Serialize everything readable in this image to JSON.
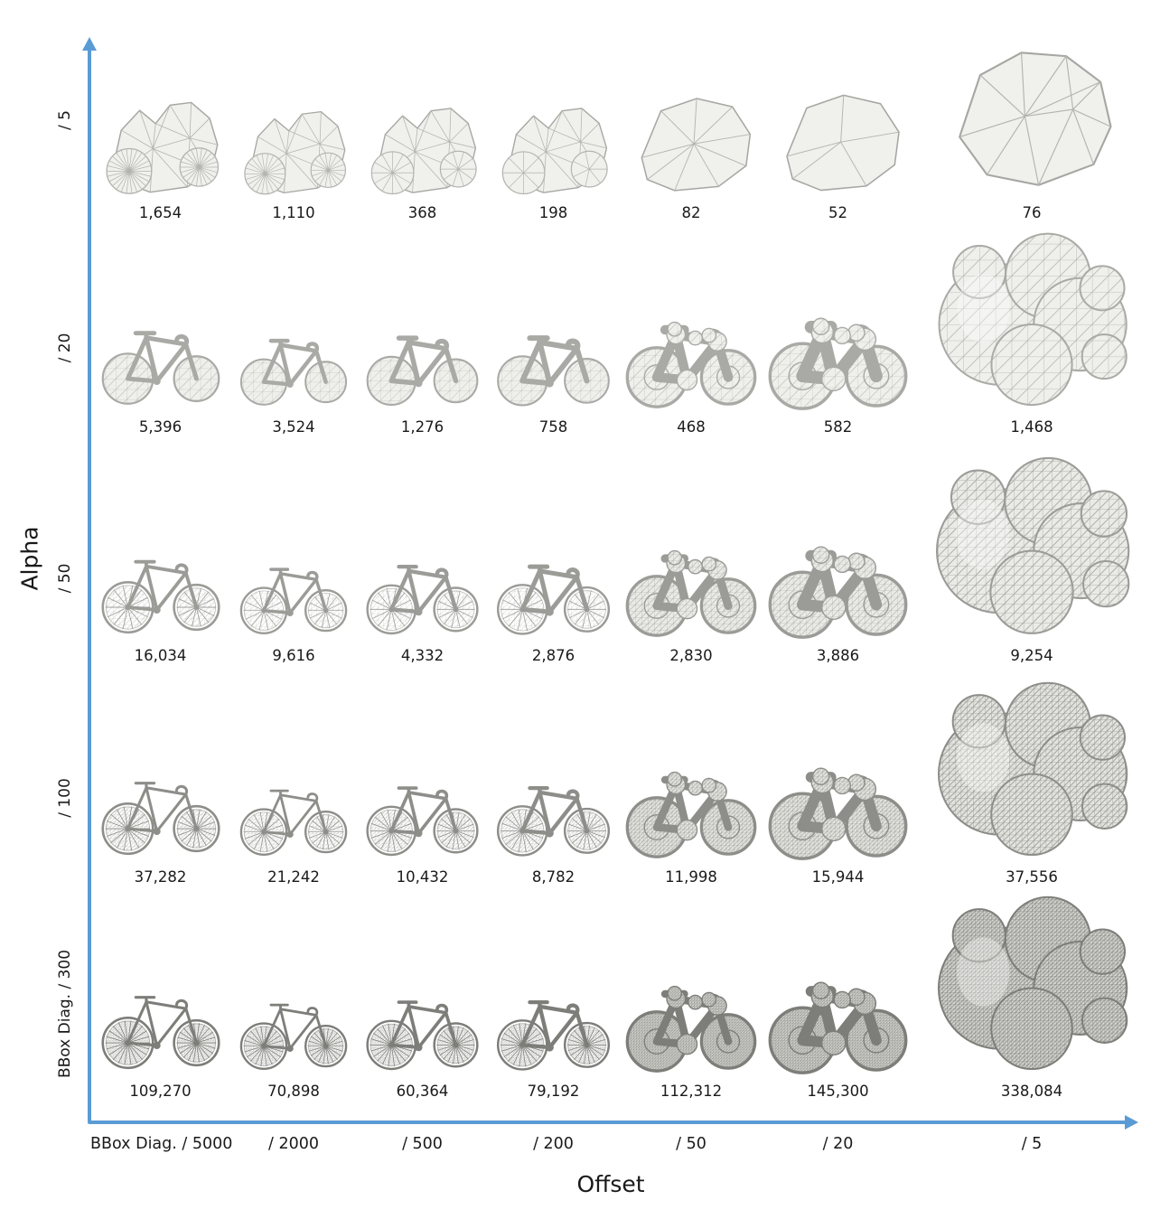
{
  "figure": {
    "y_axis_title": "Alpha",
    "x_axis_title": "Offset",
    "row_labels": [
      "/ 5",
      "/ 20",
      "/ 50",
      "/ 100",
      "BBox Diag. / 300"
    ],
    "col_labels": [
      "BBox Diag. / 5000",
      "/ 2000",
      "/ 500",
      "/ 200",
      "/ 50",
      "/ 20",
      "/ 5"
    ],
    "axis_color": "#5b9bd5",
    "rows": [
      {
        "alpha": "/ 5",
        "counts": [
          "1,654",
          "1,110",
          "368",
          "198",
          "82",
          "52",
          "76"
        ]
      },
      {
        "alpha": "/ 20",
        "counts": [
          "5,396",
          "3,524",
          "1,276",
          "758",
          "468",
          "582",
          "1,468"
        ]
      },
      {
        "alpha": "/ 50",
        "counts": [
          "16,034",
          "9,616",
          "4,332",
          "2,876",
          "2,830",
          "3,886",
          "9,254"
        ]
      },
      {
        "alpha": "/ 100",
        "counts": [
          "37,282",
          "21,242",
          "10,432",
          "8,782",
          "11,998",
          "15,944",
          "37,556"
        ]
      },
      {
        "alpha": "BBox Diag. / 300",
        "counts": [
          "109,270",
          "70,898",
          "60,364",
          "79,192",
          "112,312",
          "145,300",
          "338,084"
        ]
      }
    ]
  }
}
